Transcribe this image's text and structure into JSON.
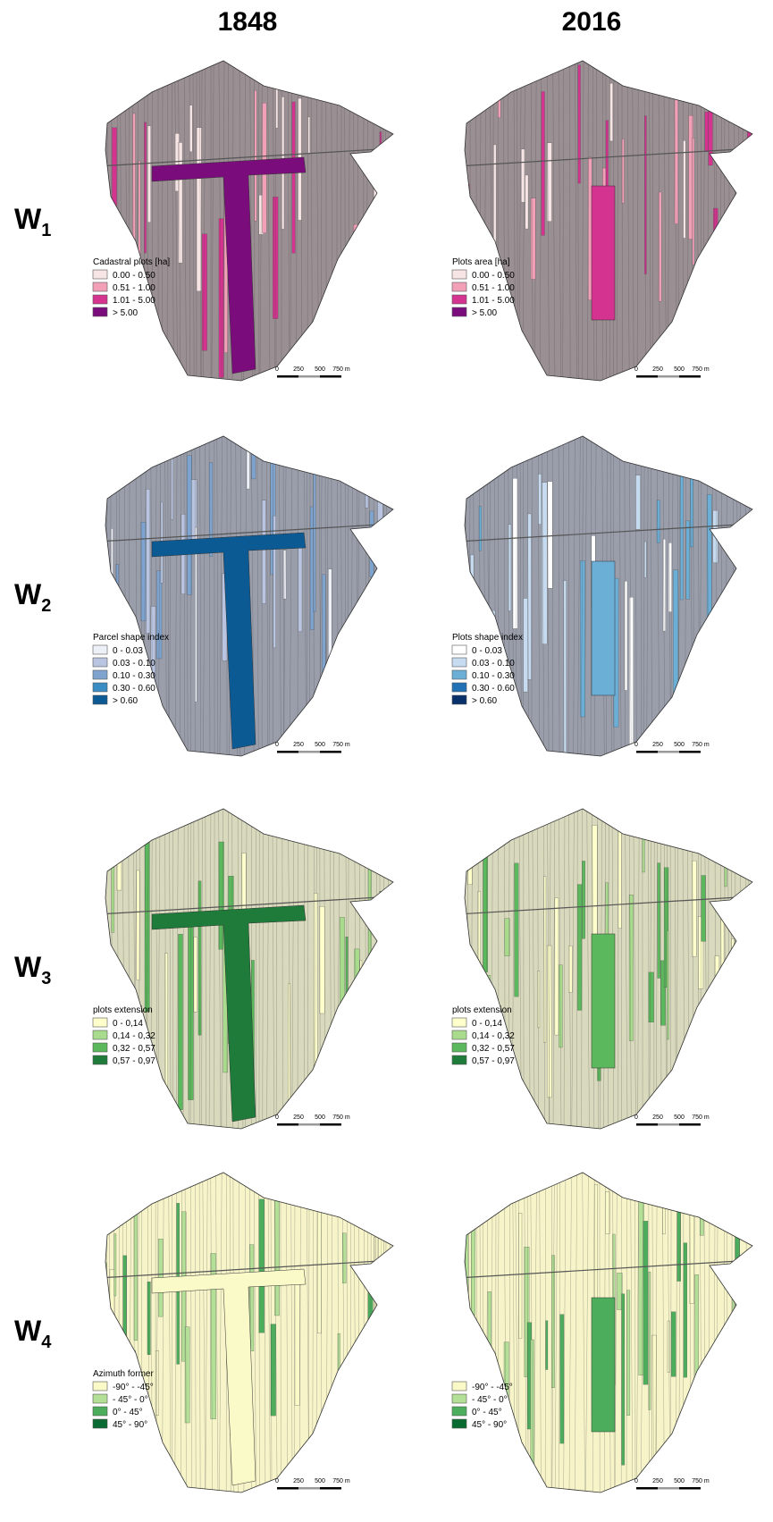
{
  "columns": [
    "1848",
    "2016"
  ],
  "scale_bar": [
    "0",
    "250",
    "500",
    "750 m"
  ],
  "rows": [
    {
      "label": "W",
      "sub": "1",
      "panels": [
        {
          "legend_title": "Cadastral plots [ha]",
          "items": [
            {
              "label": "0.00 - 0.50",
              "color": "#f7e4e4"
            },
            {
              "label": "0.51 - 1.00",
              "color": "#f2a0b8"
            },
            {
              "label": "1.01 - 5.00",
              "color": "#d4338f"
            },
            {
              "label": "> 5.00",
              "color": "#7b0c7b"
            }
          ]
        },
        {
          "legend_title": "Plots area [ha]",
          "items": [
            {
              "label": "0.00 - 0.50",
              "color": "#f7e4e4"
            },
            {
              "label": "0.51 - 1.00",
              "color": "#f2a0b8"
            },
            {
              "label": "1.01 - 5.00",
              "color": "#d4338f"
            },
            {
              "label": "> 5.00",
              "color": "#7b0c7b"
            }
          ]
        }
      ]
    },
    {
      "label": "W",
      "sub": "2",
      "panels": [
        {
          "legend_title": "Parcel shape index",
          "items": [
            {
              "label": "0 - 0.03",
              "color": "#eef0f8"
            },
            {
              "label": "0.03 - 0.10",
              "color": "#b9c4e0"
            },
            {
              "label": "0.10 - 0.30",
              "color": "#7ea3cf"
            },
            {
              "label": "0.30 - 0.60",
              "color": "#3a8cc4"
            },
            {
              "label": "> 0.60",
              "color": "#0b5a94"
            }
          ]
        },
        {
          "legend_title": "Plots shape index",
          "items": [
            {
              "label": "0 - 0.03",
              "color": "#ffffff"
            },
            {
              "label": "0.03 - 0.10",
              "color": "#c6dbef"
            },
            {
              "label": "0.10 - 0.30",
              "color": "#6baed6"
            },
            {
              "label": "0.30 - 0.60",
              "color": "#2171b5"
            },
            {
              "label": "> 0.60",
              "color": "#08306b"
            }
          ]
        }
      ]
    },
    {
      "label": "W",
      "sub": "3",
      "panels": [
        {
          "legend_title": "plots extension",
          "items": [
            {
              "label": "0 - 0,14",
              "color": "#ffffcc"
            },
            {
              "label": "0,14 - 0,32",
              "color": "#a8dc8c"
            },
            {
              "label": "0,32 - 0,57",
              "color": "#5cb85c"
            },
            {
              "label": "0,57 - 0,97",
              "color": "#1e7b3a"
            }
          ]
        },
        {
          "legend_title": "plots extension",
          "items": [
            {
              "label": "0 - 0,14",
              "color": "#ffffcc"
            },
            {
              "label": "0,14 - 0,32",
              "color": "#a8dc8c"
            },
            {
              "label": "0,32 - 0,57",
              "color": "#5cb85c"
            },
            {
              "label": "0,57 - 0,97",
              "color": "#1e7b3a"
            }
          ]
        }
      ]
    },
    {
      "label": "W",
      "sub": "4",
      "panels": [
        {
          "legend_title": "Azimuth former",
          "items": [
            {
              "label": "-90° - -45°",
              "color": "#fafac8"
            },
            {
              "label": "- 45° - 0°",
              "color": "#b3e096"
            },
            {
              "label": "0° - 45°",
              "color": "#4cae5c"
            },
            {
              "label": "45° - 90°",
              "color": "#0a6b32"
            }
          ]
        },
        {
          "items": [
            {
              "label": "-90° - -45°",
              "color": "#fafac8"
            },
            {
              "label": "- 45° - 0°",
              "color": "#b3e096"
            },
            {
              "label": "0° - 45°",
              "color": "#4cae5c"
            },
            {
              "label": "45° - 90°",
              "color": "#0a6b32"
            }
          ]
        }
      ]
    }
  ]
}
